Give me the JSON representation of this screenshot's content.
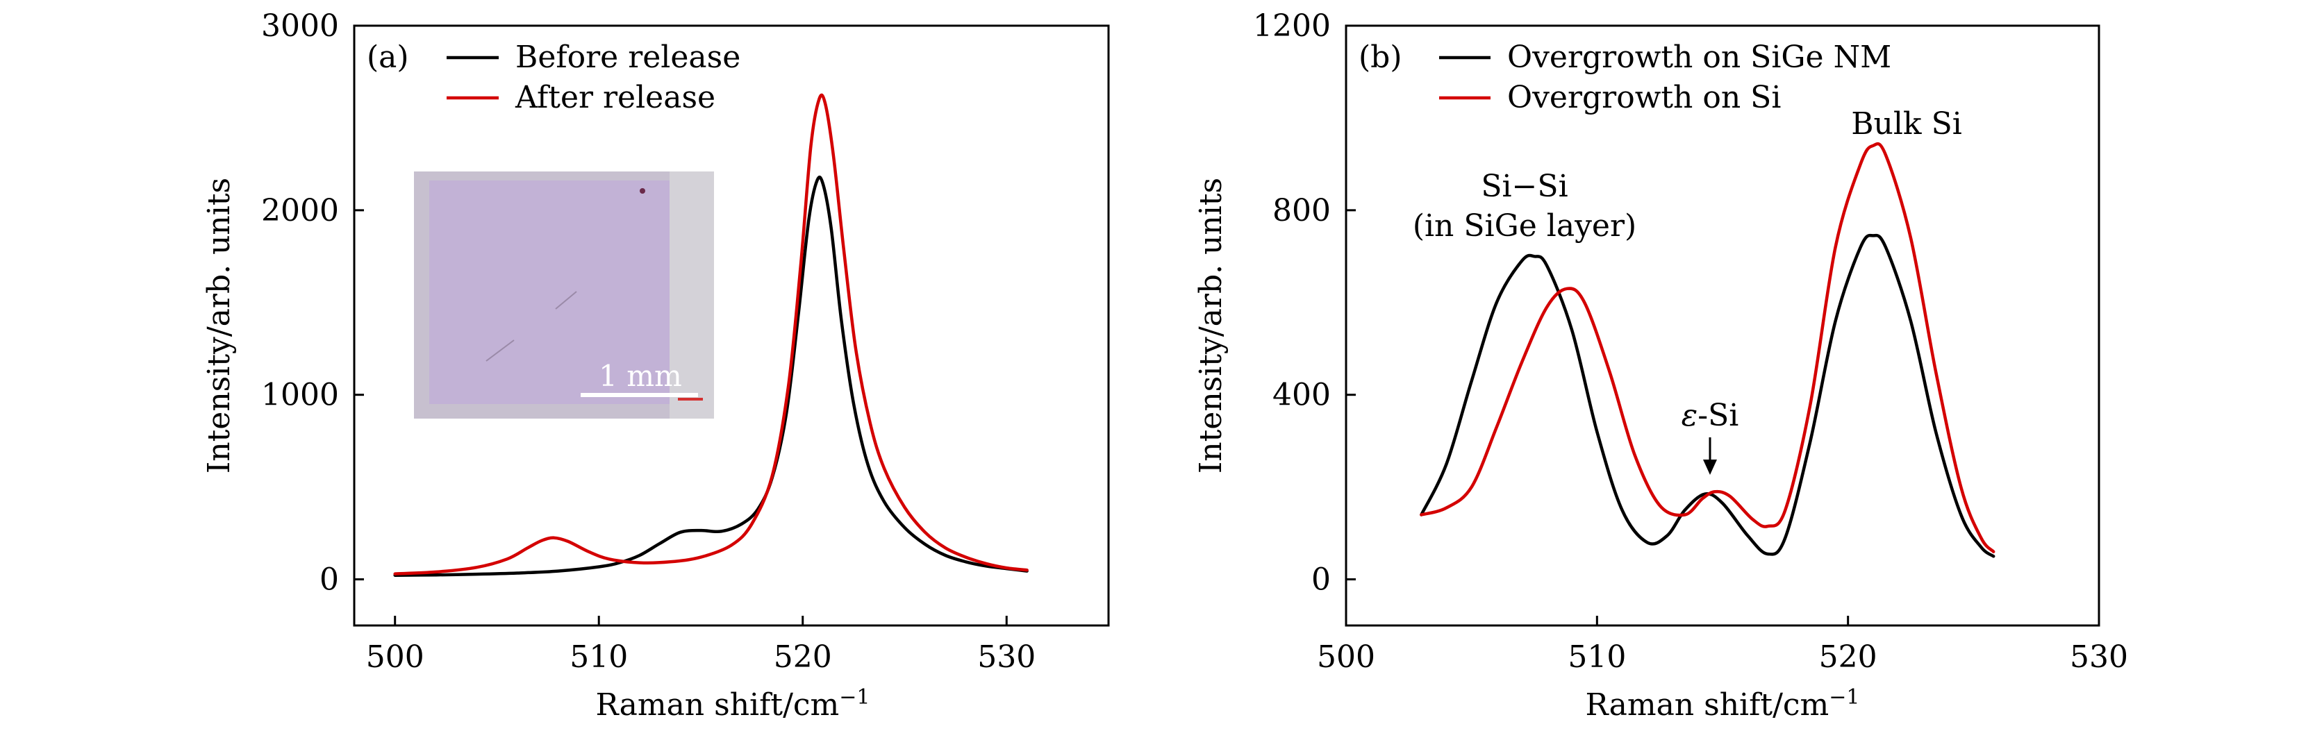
{
  "chart_data": [
    {
      "type": "line",
      "panel_label": "(a)",
      "xlabel": "Raman shift/cm",
      "xlabel_sup": "−1",
      "ylabel": "Intensity/arb. units",
      "xlim": [
        498,
        535
      ],
      "ylim": [
        -250,
        3000
      ],
      "xticks": [
        500,
        510,
        520,
        530
      ],
      "yticks": [
        0,
        1000,
        2000,
        3000
      ],
      "legend": "top-left",
      "series": [
        {
          "name": "Before release",
          "color": "#000000",
          "points": [
            [
              500,
              22
            ],
            [
              502,
              24
            ],
            [
              504,
              28
            ],
            [
              506,
              34
            ],
            [
              508,
              45
            ],
            [
              510,
              68
            ],
            [
              511,
              90
            ],
            [
              512,
              130
            ],
            [
              513,
              195
            ],
            [
              514,
              255
            ],
            [
              515,
              265
            ],
            [
              516,
              260
            ],
            [
              517,
              300
            ],
            [
              517.8,
              380
            ],
            [
              518.5,
              550
            ],
            [
              519.2,
              900
            ],
            [
              519.8,
              1450
            ],
            [
              520.3,
              1950
            ],
            [
              520.7,
              2160
            ],
            [
              521.0,
              2140
            ],
            [
              521.4,
              1900
            ],
            [
              521.9,
              1400
            ],
            [
              522.5,
              950
            ],
            [
              523.2,
              620
            ],
            [
              524,
              420
            ],
            [
              525,
              280
            ],
            [
              526,
              190
            ],
            [
              527,
              130
            ],
            [
              528,
              95
            ],
            [
              529,
              72
            ],
            [
              530,
              58
            ],
            [
              531,
              45
            ]
          ]
        },
        {
          "name": "After release",
          "color": "#d40000",
          "points": [
            [
              500,
              30
            ],
            [
              502,
              40
            ],
            [
              504,
              65
            ],
            [
              505.5,
              110
            ],
            [
              506.5,
              170
            ],
            [
              507.2,
              210
            ],
            [
              507.8,
              225
            ],
            [
              508.5,
              205
            ],
            [
              509.5,
              150
            ],
            [
              510.5,
              110
            ],
            [
              512,
              90
            ],
            [
              513.5,
              95
            ],
            [
              515,
              120
            ],
            [
              516.5,
              185
            ],
            [
              517.5,
              300
            ],
            [
              518.5,
              560
            ],
            [
              519.3,
              1050
            ],
            [
              519.9,
              1700
            ],
            [
              520.4,
              2350
            ],
            [
              520.8,
              2600
            ],
            [
              521.1,
              2580
            ],
            [
              521.5,
              2300
            ],
            [
              522,
              1800
            ],
            [
              522.6,
              1250
            ],
            [
              523.3,
              850
            ],
            [
              524,
              600
            ],
            [
              525,
              390
            ],
            [
              526,
              255
            ],
            [
              527,
              170
            ],
            [
              528,
              120
            ],
            [
              529,
              85
            ],
            [
              530,
              62
            ],
            [
              531,
              50
            ]
          ]
        }
      ],
      "inset": {
        "description_label": "1 mm"
      }
    },
    {
      "type": "line",
      "panel_label": "(b)",
      "xlabel": "Raman shift/cm",
      "xlabel_sup": "−1",
      "ylabel": "Intensity/arb. units",
      "xlim": [
        500,
        530
      ],
      "ylim": [
        -100,
        1200
      ],
      "xticks": [
        500,
        510,
        520,
        530
      ],
      "yticks": [
        0,
        400,
        800,
        1200
      ],
      "legend": "top-left",
      "annotations": {
        "si_si_line1": "Si−Si",
        "si_si_line2": "(in SiGe layer)",
        "eps_si_prefix": "ε",
        "eps_si_suffix": "-Si",
        "bulk_si": "Bulk Si"
      },
      "series": [
        {
          "name": "Overgrowth on SiGe NM",
          "color": "#000000",
          "points": [
            [
              503,
              140
            ],
            [
              504,
              250
            ],
            [
              505,
              430
            ],
            [
              506,
              600
            ],
            [
              507,
              690
            ],
            [
              507.5,
              700
            ],
            [
              508,
              680
            ],
            [
              509,
              540
            ],
            [
              510,
              320
            ],
            [
              511,
              150
            ],
            [
              512,
              80
            ],
            [
              512.8,
              95
            ],
            [
              513.5,
              150
            ],
            [
              514.3,
              185
            ],
            [
              515,
              165
            ],
            [
              516,
              95
            ],
            [
              516.8,
              55
            ],
            [
              517.5,
              90
            ],
            [
              518.5,
              300
            ],
            [
              519.5,
              560
            ],
            [
              520.5,
              720
            ],
            [
              521,
              745
            ],
            [
              521.5,
              720
            ],
            [
              522.5,
              560
            ],
            [
              523.5,
              320
            ],
            [
              524.5,
              140
            ],
            [
              525.3,
              70
            ],
            [
              525.8,
              50
            ]
          ]
        },
        {
          "name": "Overgrowth on Si",
          "color": "#d40000",
          "points": [
            [
              503,
              140
            ],
            [
              504,
              155
            ],
            [
              505,
              200
            ],
            [
              506,
              330
            ],
            [
              507,
              470
            ],
            [
              508,
              590
            ],
            [
              508.8,
              630
            ],
            [
              509.5,
              600
            ],
            [
              510.5,
              450
            ],
            [
              511.5,
              270
            ],
            [
              512.5,
              160
            ],
            [
              513.5,
              140
            ],
            [
              514.2,
              175
            ],
            [
              514.7,
              190
            ],
            [
              515.3,
              180
            ],
            [
              516.2,
              130
            ],
            [
              516.8,
              115
            ],
            [
              517.5,
              150
            ],
            [
              518.5,
              380
            ],
            [
              519.5,
              720
            ],
            [
              520.5,
              900
            ],
            [
              521,
              940
            ],
            [
              521.5,
              920
            ],
            [
              522.5,
              740
            ],
            [
              523.5,
              450
            ],
            [
              524.5,
              200
            ],
            [
              525.3,
              90
            ],
            [
              525.8,
              60
            ]
          ]
        }
      ]
    }
  ]
}
